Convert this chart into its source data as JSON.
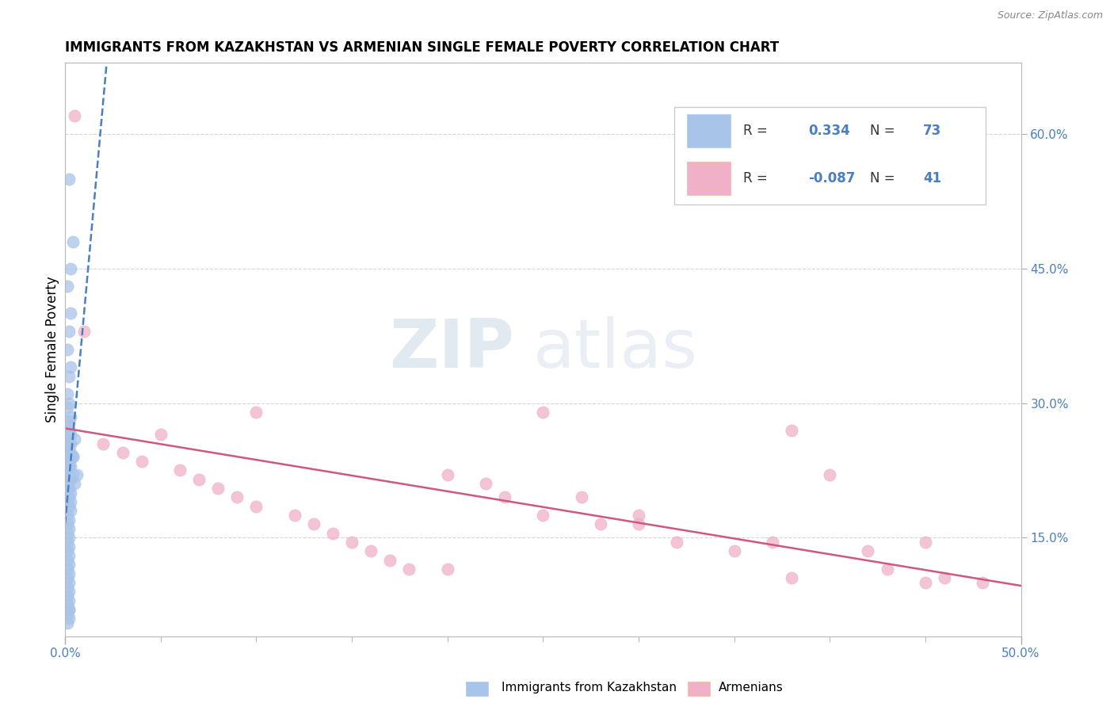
{
  "title": "IMMIGRANTS FROM KAZAKHSTAN VS ARMENIAN SINGLE FEMALE POVERTY CORRELATION CHART",
  "source": "Source: ZipAtlas.com",
  "ylabel": "Single Female Poverty",
  "ylabel_right_ticks": [
    "15.0%",
    "30.0%",
    "45.0%",
    "60.0%"
  ],
  "ylabel_right_vals": [
    0.15,
    0.3,
    0.45,
    0.6
  ],
  "xlim": [
    0.0,
    0.5
  ],
  "ylim": [
    0.04,
    0.68
  ],
  "r1": 0.334,
  "n1": 73,
  "r2": -0.087,
  "n2": 41,
  "watermark_zip": "ZIP",
  "watermark_atlas": "atlas",
  "blue_color": "#a8c4e8",
  "blue_line_color": "#4a7fc0",
  "pink_color": "#f0b0c8",
  "pink_line_color": "#d05880",
  "background_color": "#ffffff",
  "grid_color": "#cccccc",
  "blue_x": [
    0.002,
    0.004,
    0.003,
    0.001,
    0.003,
    0.002,
    0.001,
    0.003,
    0.002,
    0.001,
    0.002,
    0.001,
    0.003,
    0.002,
    0.001,
    0.002,
    0.003,
    0.001,
    0.002,
    0.001,
    0.003,
    0.002,
    0.001,
    0.002,
    0.001,
    0.002,
    0.003,
    0.001,
    0.002,
    0.001,
    0.002,
    0.001,
    0.002,
    0.003,
    0.001,
    0.002,
    0.001,
    0.002,
    0.001,
    0.002,
    0.001,
    0.002,
    0.001,
    0.002,
    0.001,
    0.002,
    0.001,
    0.002,
    0.001,
    0.002,
    0.001,
    0.002,
    0.001,
    0.002,
    0.001,
    0.002,
    0.001,
    0.002,
    0.001,
    0.001,
    0.001,
    0.003,
    0.003,
    0.002,
    0.004,
    0.005,
    0.004,
    0.003,
    0.005,
    0.004,
    0.006,
    0.003,
    0.002
  ],
  "blue_y": [
    0.55,
    0.48,
    0.45,
    0.43,
    0.4,
    0.38,
    0.36,
    0.34,
    0.33,
    0.31,
    0.3,
    0.295,
    0.285,
    0.28,
    0.275,
    0.27,
    0.265,
    0.26,
    0.255,
    0.25,
    0.245,
    0.24,
    0.235,
    0.23,
    0.225,
    0.22,
    0.215,
    0.21,
    0.205,
    0.2,
    0.195,
    0.19,
    0.185,
    0.18,
    0.175,
    0.17,
    0.165,
    0.16,
    0.155,
    0.15,
    0.145,
    0.14,
    0.135,
    0.13,
    0.125,
    0.12,
    0.115,
    0.11,
    0.105,
    0.1,
    0.095,
    0.09,
    0.085,
    0.08,
    0.075,
    0.07,
    0.065,
    0.06,
    0.055,
    0.22,
    0.21,
    0.2,
    0.19,
    0.23,
    0.22,
    0.21,
    0.24,
    0.255,
    0.26,
    0.24,
    0.22,
    0.23,
    0.07
  ],
  "pink_x": [
    0.005,
    0.01,
    0.02,
    0.03,
    0.04,
    0.05,
    0.06,
    0.07,
    0.08,
    0.09,
    0.1,
    0.12,
    0.13,
    0.14,
    0.15,
    0.16,
    0.17,
    0.18,
    0.2,
    0.22,
    0.23,
    0.25,
    0.27,
    0.28,
    0.3,
    0.32,
    0.35,
    0.37,
    0.38,
    0.4,
    0.42,
    0.43,
    0.45,
    0.46,
    0.48,
    0.1,
    0.25,
    0.38,
    0.2,
    0.3,
    0.45
  ],
  "pink_y": [
    0.62,
    0.38,
    0.255,
    0.245,
    0.235,
    0.265,
    0.225,
    0.215,
    0.205,
    0.195,
    0.185,
    0.175,
    0.165,
    0.155,
    0.145,
    0.135,
    0.125,
    0.115,
    0.22,
    0.21,
    0.195,
    0.175,
    0.195,
    0.165,
    0.165,
    0.145,
    0.135,
    0.145,
    0.105,
    0.22,
    0.135,
    0.115,
    0.145,
    0.105,
    0.1,
    0.29,
    0.29,
    0.27,
    0.115,
    0.175,
    0.1
  ]
}
